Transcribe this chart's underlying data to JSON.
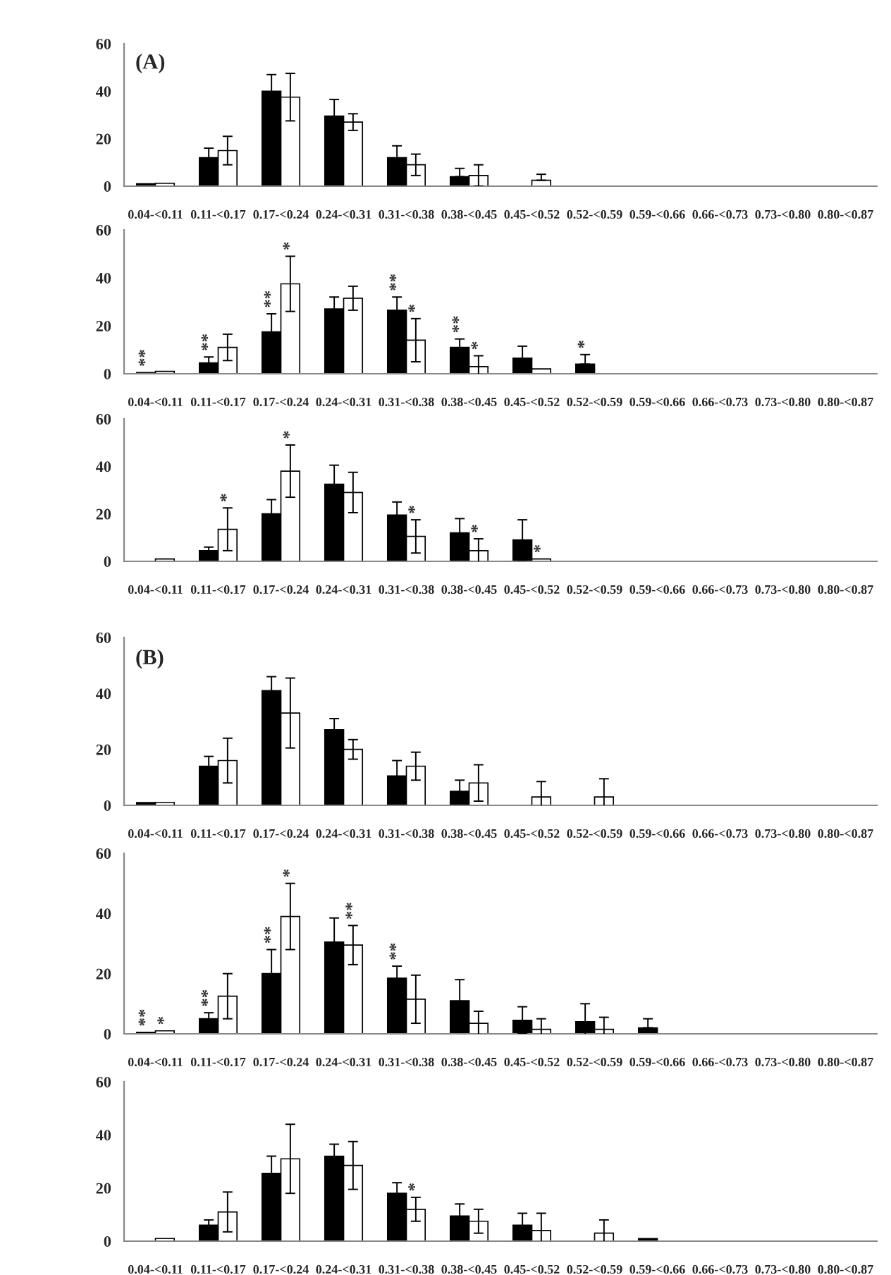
{
  "chart_data": [
    {
      "type": "bar",
      "categories": [
        "0.04-<0.11",
        "0.11-<0.17",
        "0.17-<0.24",
        "0.24-<0.31",
        "0.31-<0.38",
        "0.38-<0.45",
        "0.45-<0.52",
        "0.52-<0.59",
        "0.59-<0.66",
        "0.66-<0.73",
        "0.73-<0.80",
        "0.80-<0.87"
      ],
      "ylim": [
        0,
        60
      ],
      "yticks": [
        0,
        20,
        40,
        60
      ],
      "series": [
        {
          "color": "#000000",
          "values": [
            1,
            12,
            40,
            29.5,
            12,
            4,
            null,
            null,
            null,
            null,
            null,
            null
          ],
          "errors": [
            null,
            4,
            7,
            7,
            5,
            [
              4,
              7.5
            ],
            null,
            null,
            null,
            null,
            null,
            null
          ]
        },
        {
          "color": "#ffffff",
          "values": [
            1.2,
            15,
            37.5,
            27,
            9,
            4.5,
            2.5,
            null,
            null,
            null,
            null,
            null
          ],
          "errors": [
            null,
            6,
            10,
            3.5,
            4.5,
            4.5,
            [
              2.5,
              5
            ],
            null,
            null,
            null,
            null,
            null
          ]
        }
      ],
      "annotations": [
        "(A)"
      ]
    },
    {
      "type": "bar",
      "categories": [
        "0.04-<0.11",
        "0.11-<0.17",
        "0.17-<0.24",
        "0.24-<0.31",
        "0.31-<0.38",
        "0.38-<0.45",
        "0.45-<0.52",
        "0.52-<0.59",
        "0.59-<0.66",
        "0.66-<0.73",
        "0.73-<0.80",
        "0.80-<0.87"
      ],
      "ylim": [
        0,
        60
      ],
      "yticks": [
        0,
        20,
        40,
        60
      ],
      "series": [
        {
          "color": "#000000",
          "values": [
            0.5,
            4.5,
            17.5,
            27,
            26.5,
            11,
            6.5,
            4,
            null,
            null,
            null,
            null
          ],
          "errors": [
            null,
            2.5,
            7.5,
            5,
            5.5,
            3.5,
            5,
            [
              4,
              8
            ],
            null,
            null,
            null,
            null
          ]
        },
        {
          "color": "#ffffff",
          "values": [
            1,
            11,
            37.5,
            31.5,
            14,
            3,
            2,
            null,
            null,
            null,
            null,
            null
          ],
          "errors": [
            null,
            5.5,
            11.5,
            5,
            9,
            4.5,
            null,
            null,
            null,
            null,
            null,
            null
          ]
        }
      ],
      "annotations": [
        {
          "text": "**",
          "x": "0.04-<0.11",
          "y": 0.5
        },
        {
          "text": "**",
          "x": "0.11-<0.17",
          "y": 4.5
        },
        {
          "text": "**",
          "x": "0.17-<0.24",
          "y": 17.5
        },
        {
          "text": "*",
          "x": "0.17-<0.24",
          "y": 37.5
        },
        {
          "text": "**",
          "x": "0.31-<0.38",
          "y": 26.5
        },
        {
          "text": "*",
          "x": "0.31-<0.38",
          "y": 14
        },
        {
          "text": "**",
          "x": "0.38-<0.45",
          "y": 11
        },
        {
          "text": "*",
          "x": "0.38-<0.45",
          "y": 3
        },
        {
          "text": "*",
          "x": "0.52-<0.59",
          "y": 4
        }
      ]
    },
    {
      "type": "bar",
      "categories": [
        "0.04-<0.11",
        "0.11-<0.17",
        "0.17-<0.24",
        "0.24-<0.31",
        "0.31-<0.38",
        "0.38-<0.45",
        "0.45-<0.52",
        "0.52-<0.59",
        "0.59-<0.66",
        "0.66-<0.73",
        "0.73-<0.80",
        "0.80-<0.87"
      ],
      "ylim": [
        0,
        60
      ],
      "yticks": [
        0,
        20,
        40,
        60
      ],
      "series": [
        {
          "color": "#000000",
          "values": [
            null,
            4.5,
            20,
            32.5,
            19.5,
            12,
            9,
            null,
            null,
            null,
            null,
            null
          ],
          "errors": [
            null,
            1.5,
            6,
            8,
            5.5,
            6,
            8.5,
            null,
            null,
            null,
            null,
            null
          ]
        },
        {
          "color": "#ffffff",
          "values": [
            1,
            13.5,
            38,
            29,
            10.5,
            4.5,
            1,
            null,
            null,
            null,
            null,
            null
          ],
          "errors": [
            null,
            9,
            11,
            8.5,
            7,
            5,
            null,
            null,
            null,
            null,
            null,
            null
          ]
        }
      ],
      "annotations": [
        {
          "text": "*",
          "x": "0.11-<0.17",
          "y": 13.5
        },
        {
          "text": "*",
          "x": "0.17-<0.24",
          "y": 38
        },
        {
          "text": "*",
          "x": "0.31-<0.38",
          "y": 10.5
        },
        {
          "text": "*",
          "x": "0.38-<0.45",
          "y": 4.5
        },
        {
          "text": "*",
          "x": "0.45-<0.52",
          "y": 1
        }
      ]
    },
    {
      "type": "bar",
      "categories": [
        "0.04-<0.11",
        "0.11-<0.17",
        "0.17-<0.24",
        "0.24-<0.31",
        "0.31-<0.38",
        "0.38-<0.45",
        "0.45-<0.52",
        "0.52-<0.59",
        "0.59-<0.66",
        "0.66-<0.73",
        "0.73-<0.80",
        "0.80-<0.87"
      ],
      "ylim": [
        0,
        60
      ],
      "yticks": [
        0,
        20,
        40,
        60
      ],
      "series": [
        {
          "color": "#000000",
          "values": [
            1,
            14,
            41,
            27,
            10.5,
            5,
            null,
            null,
            null,
            null,
            null,
            null
          ],
          "errors": [
            null,
            3.5,
            5,
            4,
            5.5,
            4,
            null,
            null,
            null,
            null,
            null,
            null
          ]
        },
        {
          "color": "#ffffff",
          "values": [
            1,
            16,
            33,
            20,
            14,
            8,
            3,
            3,
            null,
            null,
            null,
            null
          ],
          "errors": [
            null,
            8,
            12.5,
            3.5,
            5,
            6.5,
            5.5,
            6.5,
            null,
            null,
            null,
            null
          ]
        }
      ],
      "annotations": [
        "(B)"
      ]
    },
    {
      "type": "bar",
      "categories": [
        "0.04-<0.11",
        "0.11-<0.17",
        "0.17-<0.24",
        "0.24-<0.31",
        "0.31-<0.38",
        "0.38-<0.45",
        "0.45-<0.52",
        "0.52-<0.59",
        "0.59-<0.66",
        "0.66-<0.73",
        "0.73-<0.80",
        "0.80-<0.87"
      ],
      "ylim": [
        0,
        60
      ],
      "yticks": [
        0,
        20,
        40,
        60
      ],
      "series": [
        {
          "color": "#000000",
          "values": [
            0.5,
            5,
            20,
            30.5,
            18.5,
            11,
            4.5,
            4,
            2,
            null,
            null,
            null
          ],
          "errors": [
            null,
            2,
            8,
            8,
            4,
            7,
            4.5,
            6,
            [
              2,
              5
            ],
            null,
            null,
            null
          ]
        },
        {
          "color": "#ffffff",
          "values": [
            1,
            12.5,
            39,
            29.5,
            11.5,
            3.5,
            1.5,
            1.5,
            null,
            null,
            null,
            null
          ],
          "errors": [
            null,
            7.5,
            11,
            6.5,
            8,
            4,
            3.5,
            4,
            null,
            null,
            null,
            null
          ]
        }
      ],
      "annotations": [
        {
          "text": "**",
          "x": "0.04-<0.11",
          "y": 0.5
        },
        {
          "text": "*",
          "x": "0.04-<0.11",
          "y": 1
        },
        {
          "text": "**",
          "x": "0.11-<0.17",
          "y": 5
        },
        {
          "text": "**",
          "x": "0.17-<0.24",
          "y": 20
        },
        {
          "text": "*",
          "x": "0.17-<0.24",
          "y": 39
        },
        {
          "text": "**",
          "x": "0.24-<0.31",
          "y": 36
        },
        {
          "text": "**",
          "x": "0.31-<0.38",
          "y": 18.5
        }
      ]
    },
    {
      "type": "bar",
      "categories": [
        "0.04-<0.11",
        "0.11-<0.17",
        "0.17-<0.24",
        "0.24-<0.31",
        "0.31-<0.38",
        "0.38-<0.45",
        "0.45-<0.52",
        "0.52-<0.59",
        "0.59-<0.66",
        "0.66-<0.73",
        "0.73-<0.80",
        "0.80-<0.87"
      ],
      "ylim": [
        0,
        60
      ],
      "yticks": [
        0,
        20,
        40,
        60
      ],
      "series": [
        {
          "color": "#000000",
          "values": [
            null,
            6,
            25.5,
            32,
            18,
            9.5,
            6,
            null,
            1,
            null,
            null,
            null
          ],
          "errors": [
            null,
            2,
            6.5,
            4.5,
            4,
            4.5,
            4.5,
            null,
            null,
            null,
            null,
            null
          ]
        },
        {
          "color": "#ffffff",
          "values": [
            1,
            11,
            31,
            28.5,
            12,
            7.5,
            4,
            3,
            null,
            null,
            null,
            null
          ],
          "errors": [
            null,
            7.5,
            13,
            9,
            4.5,
            4.5,
            6.5,
            5,
            null,
            null,
            null,
            null
          ]
        }
      ],
      "annotations": [
        {
          "text": "*",
          "x": "0.31-<0.38",
          "y": 12
        }
      ]
    }
  ]
}
